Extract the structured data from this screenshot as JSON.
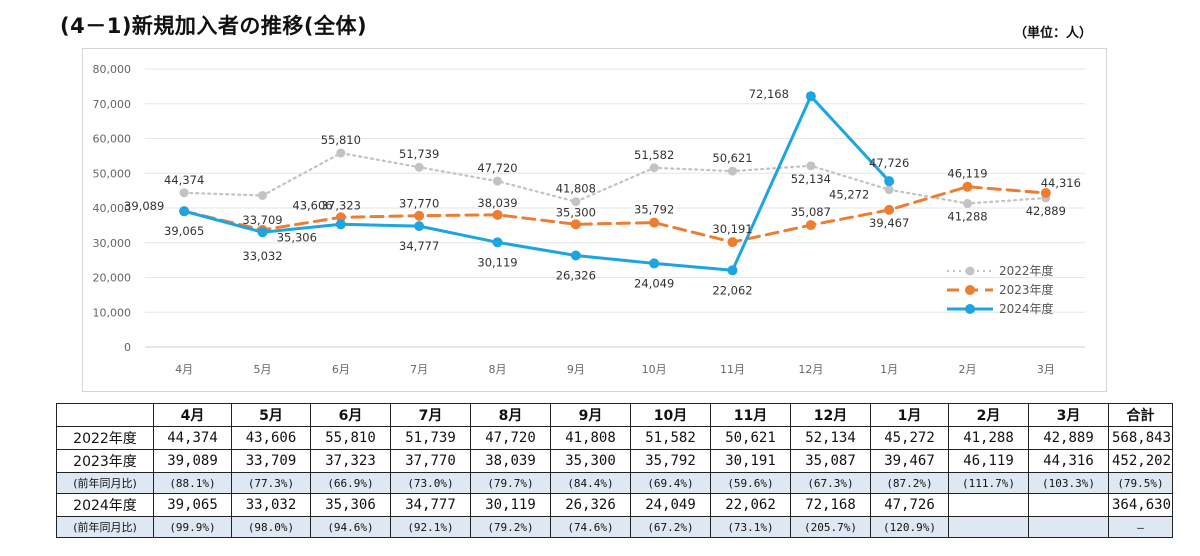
{
  "title": "(4－1)新規加入者の推移(全体)",
  "unit": "（単位：人）",
  "chart_data": {
    "type": "line",
    "categories": [
      "4月",
      "5月",
      "6月",
      "7月",
      "8月",
      "9月",
      "10月",
      "11月",
      "12月",
      "1月",
      "2月",
      "3月"
    ],
    "yticks": [
      "80,000",
      "70,000",
      "60,000",
      "50,000",
      "40,000",
      "30,000",
      "20,000",
      "10,000",
      "0"
    ],
    "ylim": [
      0,
      80000
    ],
    "grid": true,
    "legend": "right",
    "series": [
      {
        "name": "2022年度",
        "color": "#c3c3c3",
        "style": "dotted",
        "values": [
          44374,
          43606,
          55810,
          51739,
          47720,
          41808,
          51582,
          50621,
          52134,
          45272,
          41288,
          42889
        ],
        "labels": [
          "44,374",
          "43,606",
          "55,810",
          "51,739",
          "47,720",
          "41,808",
          "51,582",
          "50,621",
          "52,134",
          "45,272",
          "41,288",
          "42,889"
        ]
      },
      {
        "name": "2023年度",
        "color": "#ed7d31",
        "style": "dashed",
        "values": [
          39089,
          33709,
          37323,
          37770,
          38039,
          35300,
          35792,
          30191,
          35087,
          39467,
          46119,
          44316
        ],
        "labels": [
          "39,089",
          "33,709",
          "37,323",
          "37,770",
          "38,039",
          "35,300",
          "35,792",
          "30,191",
          "35,087",
          "39,467",
          "46,119",
          "44,316"
        ]
      },
      {
        "name": "2024年度",
        "color": "#1ca5e0",
        "style": "solid",
        "values": [
          39065,
          33032,
          35306,
          34777,
          30119,
          26326,
          24049,
          22062,
          72168,
          47726,
          null,
          null
        ],
        "labels": [
          "39,065",
          "33,032",
          "35,306",
          "34,777",
          "30,119",
          "26,326",
          "24,049",
          "22,062",
          "72,168",
          "47,726",
          "",
          ""
        ]
      }
    ]
  },
  "table": {
    "header": [
      "",
      "4月",
      "5月",
      "6月",
      "7月",
      "8月",
      "9月",
      "10月",
      "11月",
      "12月",
      "1月",
      "2月",
      "3月",
      "合計"
    ],
    "rows": [
      {
        "type": "main",
        "cells": [
          "2022年度",
          "44,374",
          "43,606",
          "55,810",
          "51,739",
          "47,720",
          "41,808",
          "51,582",
          "50,621",
          "52,134",
          "45,272",
          "41,288",
          "42,889",
          "568,843"
        ]
      },
      {
        "type": "main",
        "cells": [
          "2023年度",
          "39,089",
          "33,709",
          "37,323",
          "37,770",
          "38,039",
          "35,300",
          "35,792",
          "30,191",
          "35,087",
          "39,467",
          "46,119",
          "44,316",
          "452,202"
        ]
      },
      {
        "type": "ratio",
        "cells": [
          "(前年同月比)",
          "(88.1%)",
          "(77.3%)",
          "(66.9%)",
          "(73.0%)",
          "(79.7%)",
          "(84.4%)",
          "(69.4%)",
          "(59.6%)",
          "(67.3%)",
          "(87.2%)",
          "(111.7%)",
          "(103.3%)",
          "(79.5%)"
        ]
      },
      {
        "type": "main",
        "cells": [
          "2024年度",
          "39,065",
          "33,032",
          "35,306",
          "34,777",
          "30,119",
          "26,326",
          "24,049",
          "22,062",
          "72,168",
          "47,726",
          "",
          "",
          "364,630"
        ]
      },
      {
        "type": "ratio",
        "cells": [
          "(前年同月比)",
          "(99.9%)",
          "(98.0%)",
          "(94.6%)",
          "(92.1%)",
          "(79.2%)",
          "(74.6%)",
          "(67.2%)",
          "(73.1%)",
          "(205.7%)",
          "(120.9%)",
          "",
          "",
          "―"
        ]
      }
    ]
  }
}
